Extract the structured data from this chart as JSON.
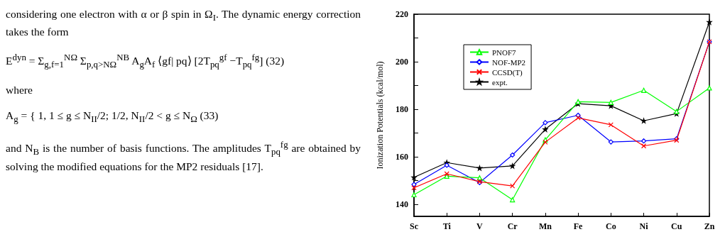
{
  "chart_data": {
    "type": "line",
    "ylabel": "Ionization Potentials (kcal/mol)",
    "categories": [
      "Sc",
      "Ti",
      "V",
      "Cr",
      "Mn",
      "Fe",
      "Co",
      "Ni",
      "Cu",
      "Zn"
    ],
    "series": [
      {
        "name": "PNOF7",
        "color": "#00ff00",
        "marker": "triangle",
        "values": [
          144.1,
          151.9,
          151.2,
          142.0,
          167.2,
          183.2,
          182.9,
          188.0,
          179.1,
          189.0
        ]
      },
      {
        "name": "NOF-MP2",
        "color": "#0000ff",
        "marker": "diamond",
        "values": [
          148.4,
          156.5,
          149.2,
          160.8,
          174.4,
          177.5,
          166.3,
          166.7,
          167.6,
          208.4
        ]
      },
      {
        "name": "CCSD(T)",
        "color": "#ff0000",
        "marker": "cross",
        "values": [
          147.0,
          152.9,
          149.6,
          147.8,
          166.2,
          176.4,
          173.5,
          164.6,
          167.0,
          208.4
        ]
      },
      {
        "name": "expt.",
        "color": "#000000",
        "marker": "star",
        "values": [
          151.4,
          157.6,
          155.3,
          156.2,
          171.6,
          182.4,
          181.5,
          175.2,
          178.2,
          216.7
        ]
      }
    ],
    "ylim": [
      135,
      220
    ],
    "yticks": [
      140,
      {
        "value": 150,
        "label": null
      },
      160,
      {
        "value": 170,
        "label": null
      },
      180,
      {
        "value": 190,
        "label": null
      },
      200,
      {
        "value": 210,
        "label": null
      },
      220
    ],
    "grid": false,
    "legend": "top left",
    "line_style": "solid",
    "annotations": [
      "considering one electron with α or β spin in Ω$_{I}$. The dynamic energy correction takes the form",
      "E$^{dyn}$ = Σ$_{g,f=1}$$^{NΩ}$ Σ$_{p,q>NΩ}$$^{NB}$ A$_{g}$A$_{f}$ ⟨gf| pq⟩ [2T$_{pq}$$^{gf}$ −T$_{pq}$$^{fg}$]   (32)",
      "where",
      "A$_{g}$ = { 1,  1 ≤ g ≤ N$_{II}$/2;  1/2,  N$_{II}$/2 < g ≤ N$_{Ω}$   (33)",
      "and N$_{B}$ is the number of basis functions. The amplitudes T$_{pq}$$^{fg}$ are obtained by solving the modified equations for the MP2 residuals [17]."
    ]
  }
}
